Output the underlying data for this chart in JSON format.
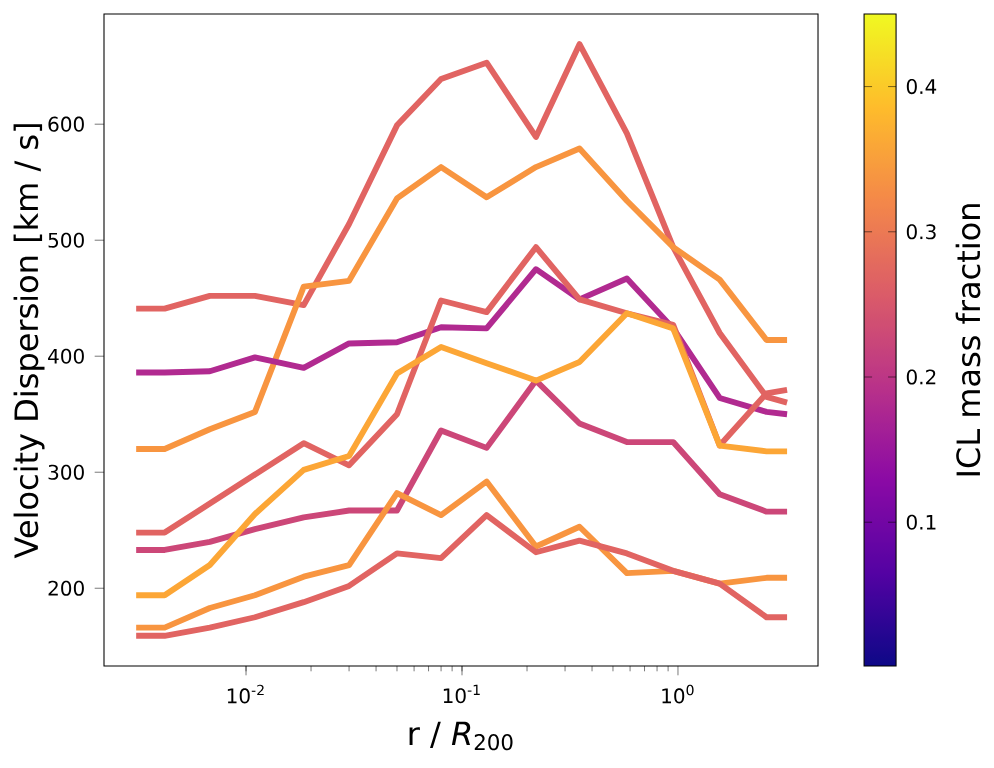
{
  "chart_data": {
    "type": "line",
    "xlabel": "r / *R*$_{200}$",
    "ylabel": "Velocity Dispersion [km / s]",
    "clabel": "ICL mass fraction",
    "log": "x",
    "xlim": [
      0.0022,
      4.45
    ],
    "ylim": [
      133,
      695
    ],
    "xticks": [
      {
        "value": 0.01,
        "label": "10$^{-2}$"
      },
      {
        "value": 0.1,
        "label": "10$^{-1}$"
      },
      {
        "value": 1,
        "label": "10$^{0}$"
      }
    ],
    "yticks": [
      200,
      300,
      400,
      500,
      600
    ],
    "clim": [
      0.001,
      0.45
    ],
    "cticks": [
      0.1,
      0.2,
      0.3,
      0.4
    ],
    "x": [
      0.0031,
      0.0042,
      0.0068,
      0.011,
      0.0185,
      0.03,
      0.05,
      0.08,
      0.13,
      0.22,
      0.35,
      0.58,
      0.95,
      1.56,
      2.57,
      3.2
    ],
    "series": [
      {
        "color": "#e16462",
        "values": [
          441,
          441,
          452,
          452,
          444,
          514,
          599,
          639,
          653,
          589,
          669,
          592,
          494,
          420,
          365,
          360
        ]
      },
      {
        "color": "#f89540",
        "values": [
          320,
          320,
          337,
          352,
          460,
          465,
          536,
          563,
          537,
          563,
          579,
          534,
          494,
          466,
          414,
          414
        ]
      },
      {
        "color": "#b12a90",
        "values": [
          386,
          386,
          387,
          399,
          390,
          411,
          412,
          425,
          424,
          475,
          449,
          467,
          424,
          364,
          352,
          350
        ]
      },
      {
        "color": "#e16462",
        "values": [
          248,
          248,
          273,
          298,
          325,
          306,
          350,
          448,
          438,
          494,
          449,
          437,
          427,
          323,
          368,
          371
        ]
      },
      {
        "color": "#cc4778",
        "values": [
          233,
          233,
          240,
          251,
          261,
          267,
          267,
          336,
          321,
          379,
          342,
          326,
          326,
          281,
          266,
          266
        ]
      },
      {
        "color": "#fca636",
        "values": [
          194,
          194,
          220,
          264,
          302,
          314,
          385,
          408,
          394,
          379,
          395,
          437,
          424,
          323,
          318,
          318
        ]
      },
      {
        "color": "#f89540",
        "values": [
          166,
          166,
          183,
          194,
          210,
          220,
          282,
          263,
          292,
          236,
          253,
          213,
          215,
          204,
          209,
          209
        ]
      },
      {
        "color": "#e16462",
        "values": [
          159,
          159,
          166,
          175,
          188,
          202,
          230,
          226,
          263,
          231,
          241,
          230,
          215,
          204,
          175,
          175
        ]
      }
    ]
  }
}
